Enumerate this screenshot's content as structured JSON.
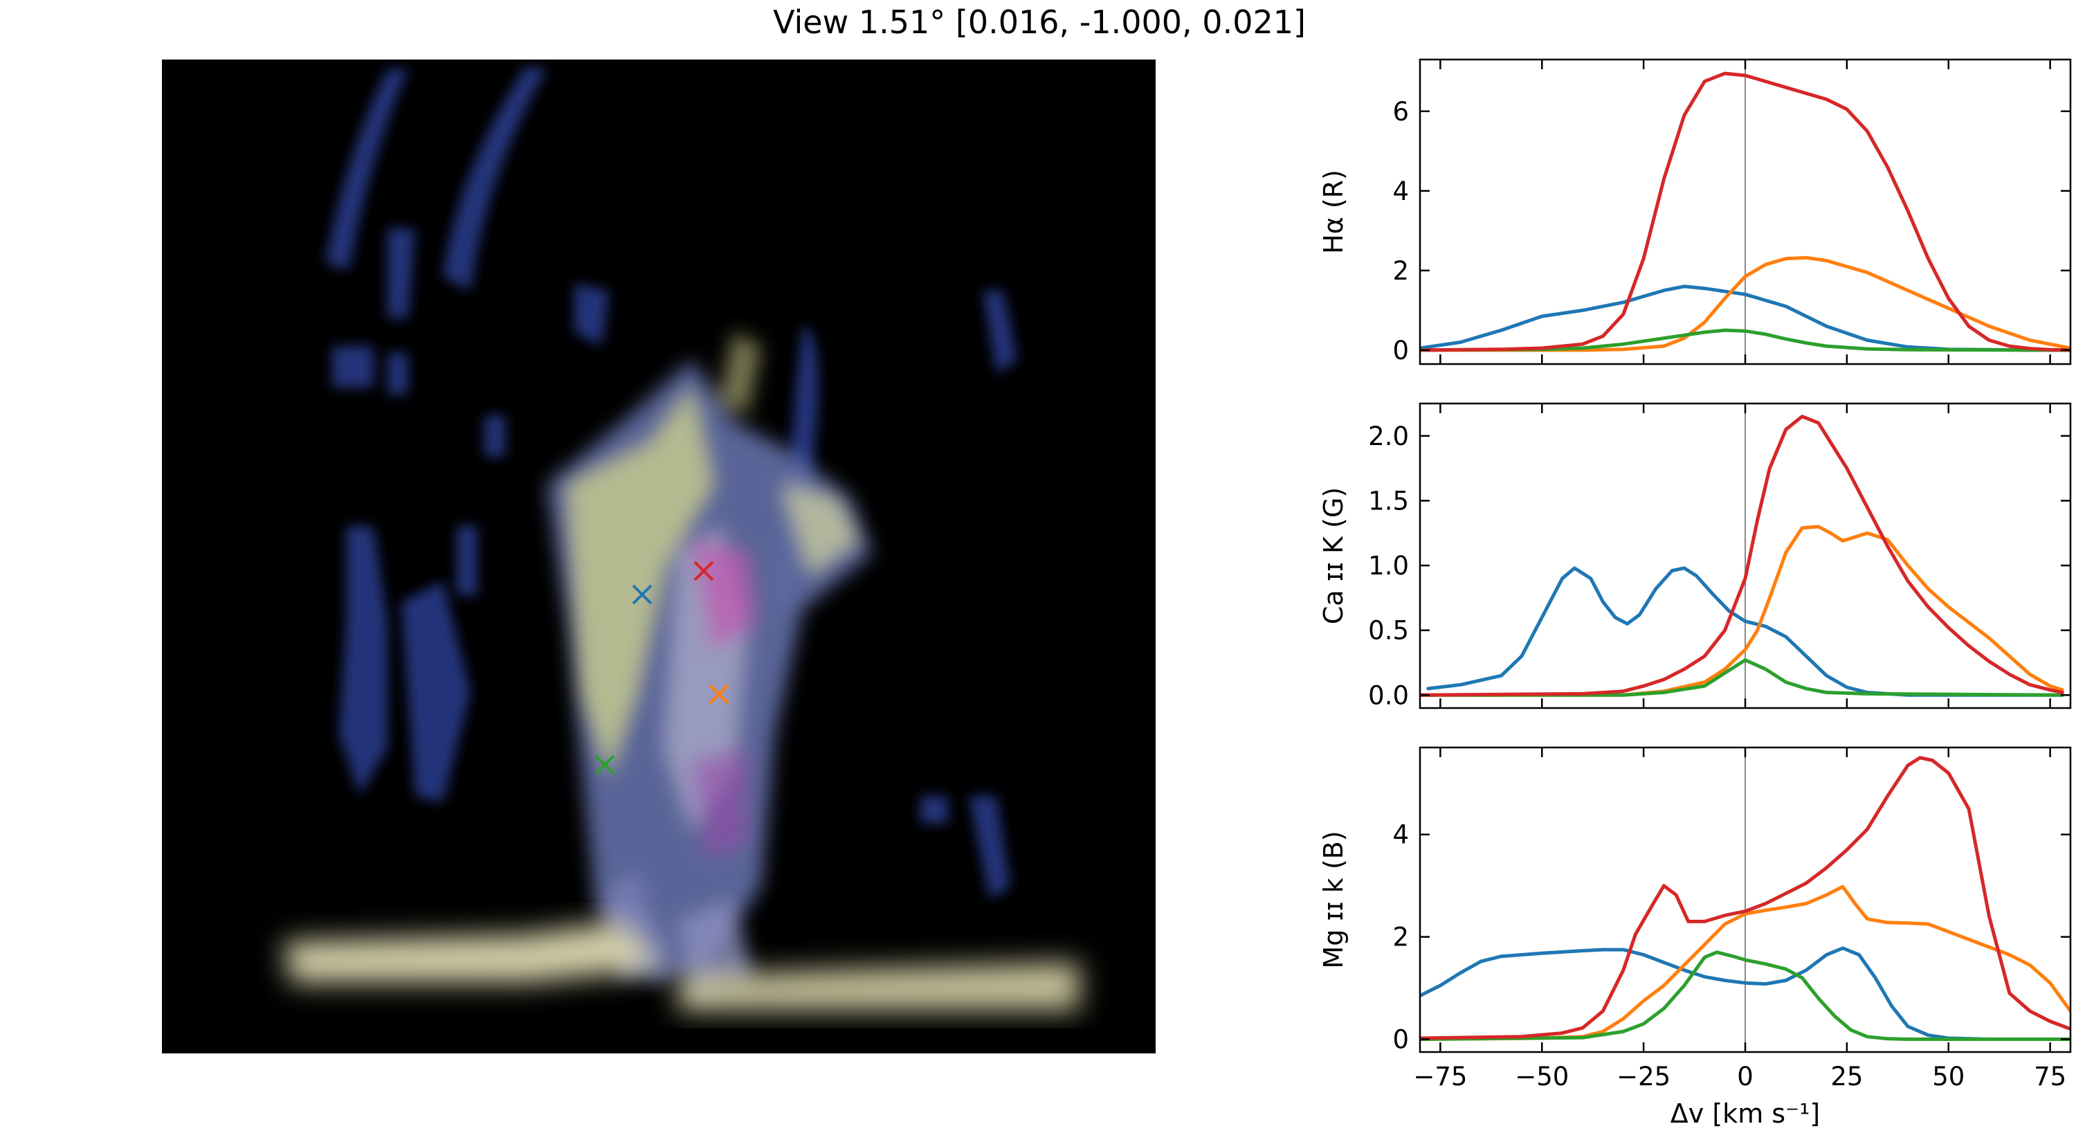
{
  "title": "View 1.51° [0.016, -1.000, 0.021]",
  "colors": {
    "blue": "#1f77b4",
    "orange": "#ff7f0e",
    "green": "#2ca02c",
    "red": "#d62728",
    "zero_line": "#888888"
  },
  "image_panel": {
    "markers": [
      {
        "color": "red",
        "label": "×"
      },
      {
        "color": "blue",
        "label": "×"
      },
      {
        "color": "orange",
        "label": "×"
      },
      {
        "color": "green",
        "label": "×"
      }
    ]
  },
  "chart_data": [
    {
      "type": "line",
      "ylabel": "Hα (R)",
      "xlabel": "",
      "xlim": [
        -80,
        80
      ],
      "ylim": [
        -0.35,
        7.3
      ],
      "yticks": [
        0,
        2,
        4,
        6
      ],
      "xticks": [
        -75,
        -50,
        -25,
        0,
        25,
        50,
        75
      ],
      "show_xticklabels": false,
      "series": [
        {
          "color": "blue",
          "x": [
            -80,
            -70,
            -60,
            -50,
            -40,
            -30,
            -20,
            -15,
            -10,
            0,
            10,
            20,
            30,
            40,
            50,
            60,
            70,
            80
          ],
          "y": [
            0.05,
            0.2,
            0.5,
            0.85,
            1.0,
            1.2,
            1.5,
            1.6,
            1.55,
            1.4,
            1.1,
            0.6,
            0.25,
            0.08,
            0.02,
            0.01,
            0.0,
            0.0
          ]
        },
        {
          "color": "orange",
          "x": [
            -80,
            -40,
            -30,
            -20,
            -15,
            -10,
            -5,
            0,
            5,
            10,
            15,
            20,
            30,
            40,
            50,
            60,
            70,
            80
          ],
          "y": [
            0,
            0,
            0.02,
            0.1,
            0.3,
            0.7,
            1.3,
            1.85,
            2.15,
            2.3,
            2.32,
            2.25,
            1.95,
            1.5,
            1.05,
            0.6,
            0.25,
            0.05
          ]
        },
        {
          "color": "green",
          "x": [
            -80,
            -50,
            -40,
            -30,
            -20,
            -10,
            -5,
            0,
            5,
            10,
            15,
            20,
            30,
            40,
            80
          ],
          "y": [
            0,
            0.02,
            0.05,
            0.15,
            0.3,
            0.45,
            0.5,
            0.48,
            0.4,
            0.28,
            0.18,
            0.1,
            0.03,
            0.01,
            0
          ]
        },
        {
          "color": "red",
          "x": [
            -80,
            -60,
            -50,
            -40,
            -35,
            -30,
            -25,
            -20,
            -15,
            -10,
            -5,
            0,
            5,
            10,
            15,
            20,
            25,
            30,
            35,
            40,
            45,
            50,
            55,
            60,
            65,
            70,
            75,
            80
          ],
          "y": [
            0,
            0.02,
            0.05,
            0.15,
            0.35,
            0.9,
            2.3,
            4.3,
            5.9,
            6.75,
            6.95,
            6.9,
            6.75,
            6.6,
            6.45,
            6.3,
            6.05,
            5.5,
            4.6,
            3.5,
            2.3,
            1.3,
            0.6,
            0.25,
            0.1,
            0.04,
            0.01,
            0
          ]
        }
      ]
    },
    {
      "type": "line",
      "ylabel": "Ca ɪɪ K (G)",
      "xlabel": "",
      "xlim": [
        -80,
        80
      ],
      "ylim": [
        -0.1,
        2.25
      ],
      "yticks": [
        0.0,
        0.5,
        1.0,
        1.5,
        2.0
      ],
      "ytick_labels": [
        "0.0",
        "0.5",
        "1.0",
        "1.5",
        "2.0"
      ],
      "xticks": [
        -75,
        -50,
        -25,
        0,
        25,
        50,
        75
      ],
      "show_xticklabels": false,
      "series": [
        {
          "color": "blue",
          "x": [
            -78,
            -70,
            -60,
            -55,
            -50,
            -45,
            -42,
            -38,
            -35,
            -32,
            -29,
            -26,
            -22,
            -18,
            -15,
            -12,
            -8,
            -4,
            0,
            5,
            10,
            15,
            20,
            25,
            30,
            40,
            50,
            78
          ],
          "y": [
            0.05,
            0.08,
            0.15,
            0.3,
            0.6,
            0.9,
            0.98,
            0.9,
            0.72,
            0.6,
            0.55,
            0.62,
            0.82,
            0.96,
            0.98,
            0.92,
            0.78,
            0.65,
            0.57,
            0.53,
            0.45,
            0.3,
            0.15,
            0.06,
            0.02,
            0,
            0,
            0
          ]
        },
        {
          "color": "orange",
          "x": [
            -80,
            -30,
            -20,
            -10,
            -5,
            0,
            3,
            6,
            10,
            14,
            18,
            21,
            24,
            27,
            30,
            35,
            40,
            45,
            50,
            55,
            60,
            65,
            70,
            75,
            78
          ],
          "y": [
            0,
            0,
            0.03,
            0.1,
            0.2,
            0.35,
            0.5,
            0.75,
            1.1,
            1.29,
            1.3,
            1.25,
            1.19,
            1.22,
            1.25,
            1.2,
            1.0,
            0.82,
            0.68,
            0.56,
            0.44,
            0.3,
            0.16,
            0.07,
            0.04
          ]
        },
        {
          "color": "green",
          "x": [
            -80,
            -30,
            -20,
            -10,
            -5,
            0,
            5,
            10,
            15,
            20,
            30,
            78
          ],
          "y": [
            0,
            0,
            0.02,
            0.07,
            0.17,
            0.27,
            0.2,
            0.1,
            0.05,
            0.02,
            0.01,
            0
          ]
        },
        {
          "color": "red",
          "x": [
            -80,
            -40,
            -30,
            -25,
            -20,
            -15,
            -10,
            -5,
            0,
            3,
            6,
            10,
            14,
            18,
            20,
            25,
            30,
            35,
            40,
            45,
            50,
            55,
            60,
            65,
            70,
            75,
            78
          ],
          "y": [
            0,
            0.01,
            0.03,
            0.07,
            0.12,
            0.2,
            0.3,
            0.5,
            0.9,
            1.35,
            1.75,
            2.05,
            2.15,
            2.1,
            2.0,
            1.75,
            1.45,
            1.15,
            0.88,
            0.68,
            0.52,
            0.38,
            0.26,
            0.16,
            0.08,
            0.04,
            0.02
          ]
        }
      ]
    },
    {
      "type": "line",
      "ylabel": "Mg ɪɪ k (B)",
      "xlabel": "Δv [km s⁻¹]",
      "xlim": [
        -80,
        80
      ],
      "ylim": [
        -0.25,
        5.7
      ],
      "yticks": [
        0,
        2,
        4
      ],
      "xticks": [
        -75,
        -50,
        -25,
        0,
        25,
        50,
        75
      ],
      "show_xticklabels": true,
      "series": [
        {
          "color": "blue",
          "x": [
            -80,
            -75,
            -70,
            -65,
            -60,
            -50,
            -40,
            -35,
            -30,
            -25,
            -20,
            -15,
            -10,
            -5,
            0,
            5,
            10,
            15,
            20,
            24,
            28,
            32,
            36,
            40,
            45,
            50,
            60,
            80
          ],
          "y": [
            0.85,
            1.05,
            1.3,
            1.52,
            1.62,
            1.68,
            1.73,
            1.75,
            1.75,
            1.65,
            1.5,
            1.35,
            1.22,
            1.15,
            1.1,
            1.08,
            1.15,
            1.35,
            1.65,
            1.78,
            1.65,
            1.2,
            0.65,
            0.25,
            0.08,
            0.02,
            0,
            0
          ]
        },
        {
          "color": "orange",
          "x": [
            -80,
            -50,
            -40,
            -35,
            -30,
            -25,
            -20,
            -15,
            -10,
            -5,
            0,
            5,
            10,
            15,
            20,
            24,
            27,
            30,
            35,
            40,
            45,
            50,
            55,
            60,
            65,
            70,
            75,
            80
          ],
          "y": [
            0,
            0.02,
            0.05,
            0.15,
            0.4,
            0.75,
            1.05,
            1.45,
            1.85,
            2.25,
            2.45,
            2.52,
            2.58,
            2.65,
            2.82,
            2.98,
            2.65,
            2.35,
            2.28,
            2.27,
            2.25,
            2.1,
            1.95,
            1.8,
            1.65,
            1.45,
            1.1,
            0.55
          ]
        },
        {
          "color": "green",
          "x": [
            -80,
            -40,
            -30,
            -25,
            -20,
            -15,
            -10,
            -7,
            -3,
            0,
            5,
            10,
            14,
            18,
            22,
            26,
            30,
            35,
            40,
            50,
            80
          ],
          "y": [
            0,
            0.03,
            0.15,
            0.3,
            0.6,
            1.05,
            1.6,
            1.7,
            1.62,
            1.55,
            1.47,
            1.37,
            1.2,
            0.8,
            0.45,
            0.18,
            0.05,
            0.01,
            0,
            0,
            0
          ]
        },
        {
          "color": "red",
          "x": [
            -80,
            -55,
            -45,
            -40,
            -35,
            -30,
            -27,
            -23,
            -20,
            -17,
            -14,
            -10,
            -5,
            0,
            5,
            10,
            15,
            20,
            25,
            30,
            35,
            40,
            43,
            46,
            50,
            55,
            60,
            65,
            70,
            75,
            80
          ],
          "y": [
            0.02,
            0.05,
            0.12,
            0.22,
            0.55,
            1.35,
            2.05,
            2.6,
            3.0,
            2.82,
            2.3,
            2.3,
            2.42,
            2.5,
            2.65,
            2.85,
            3.05,
            3.35,
            3.7,
            4.1,
            4.75,
            5.35,
            5.5,
            5.45,
            5.2,
            4.5,
            2.4,
            0.9,
            0.55,
            0.35,
            0.2
          ]
        }
      ]
    }
  ]
}
